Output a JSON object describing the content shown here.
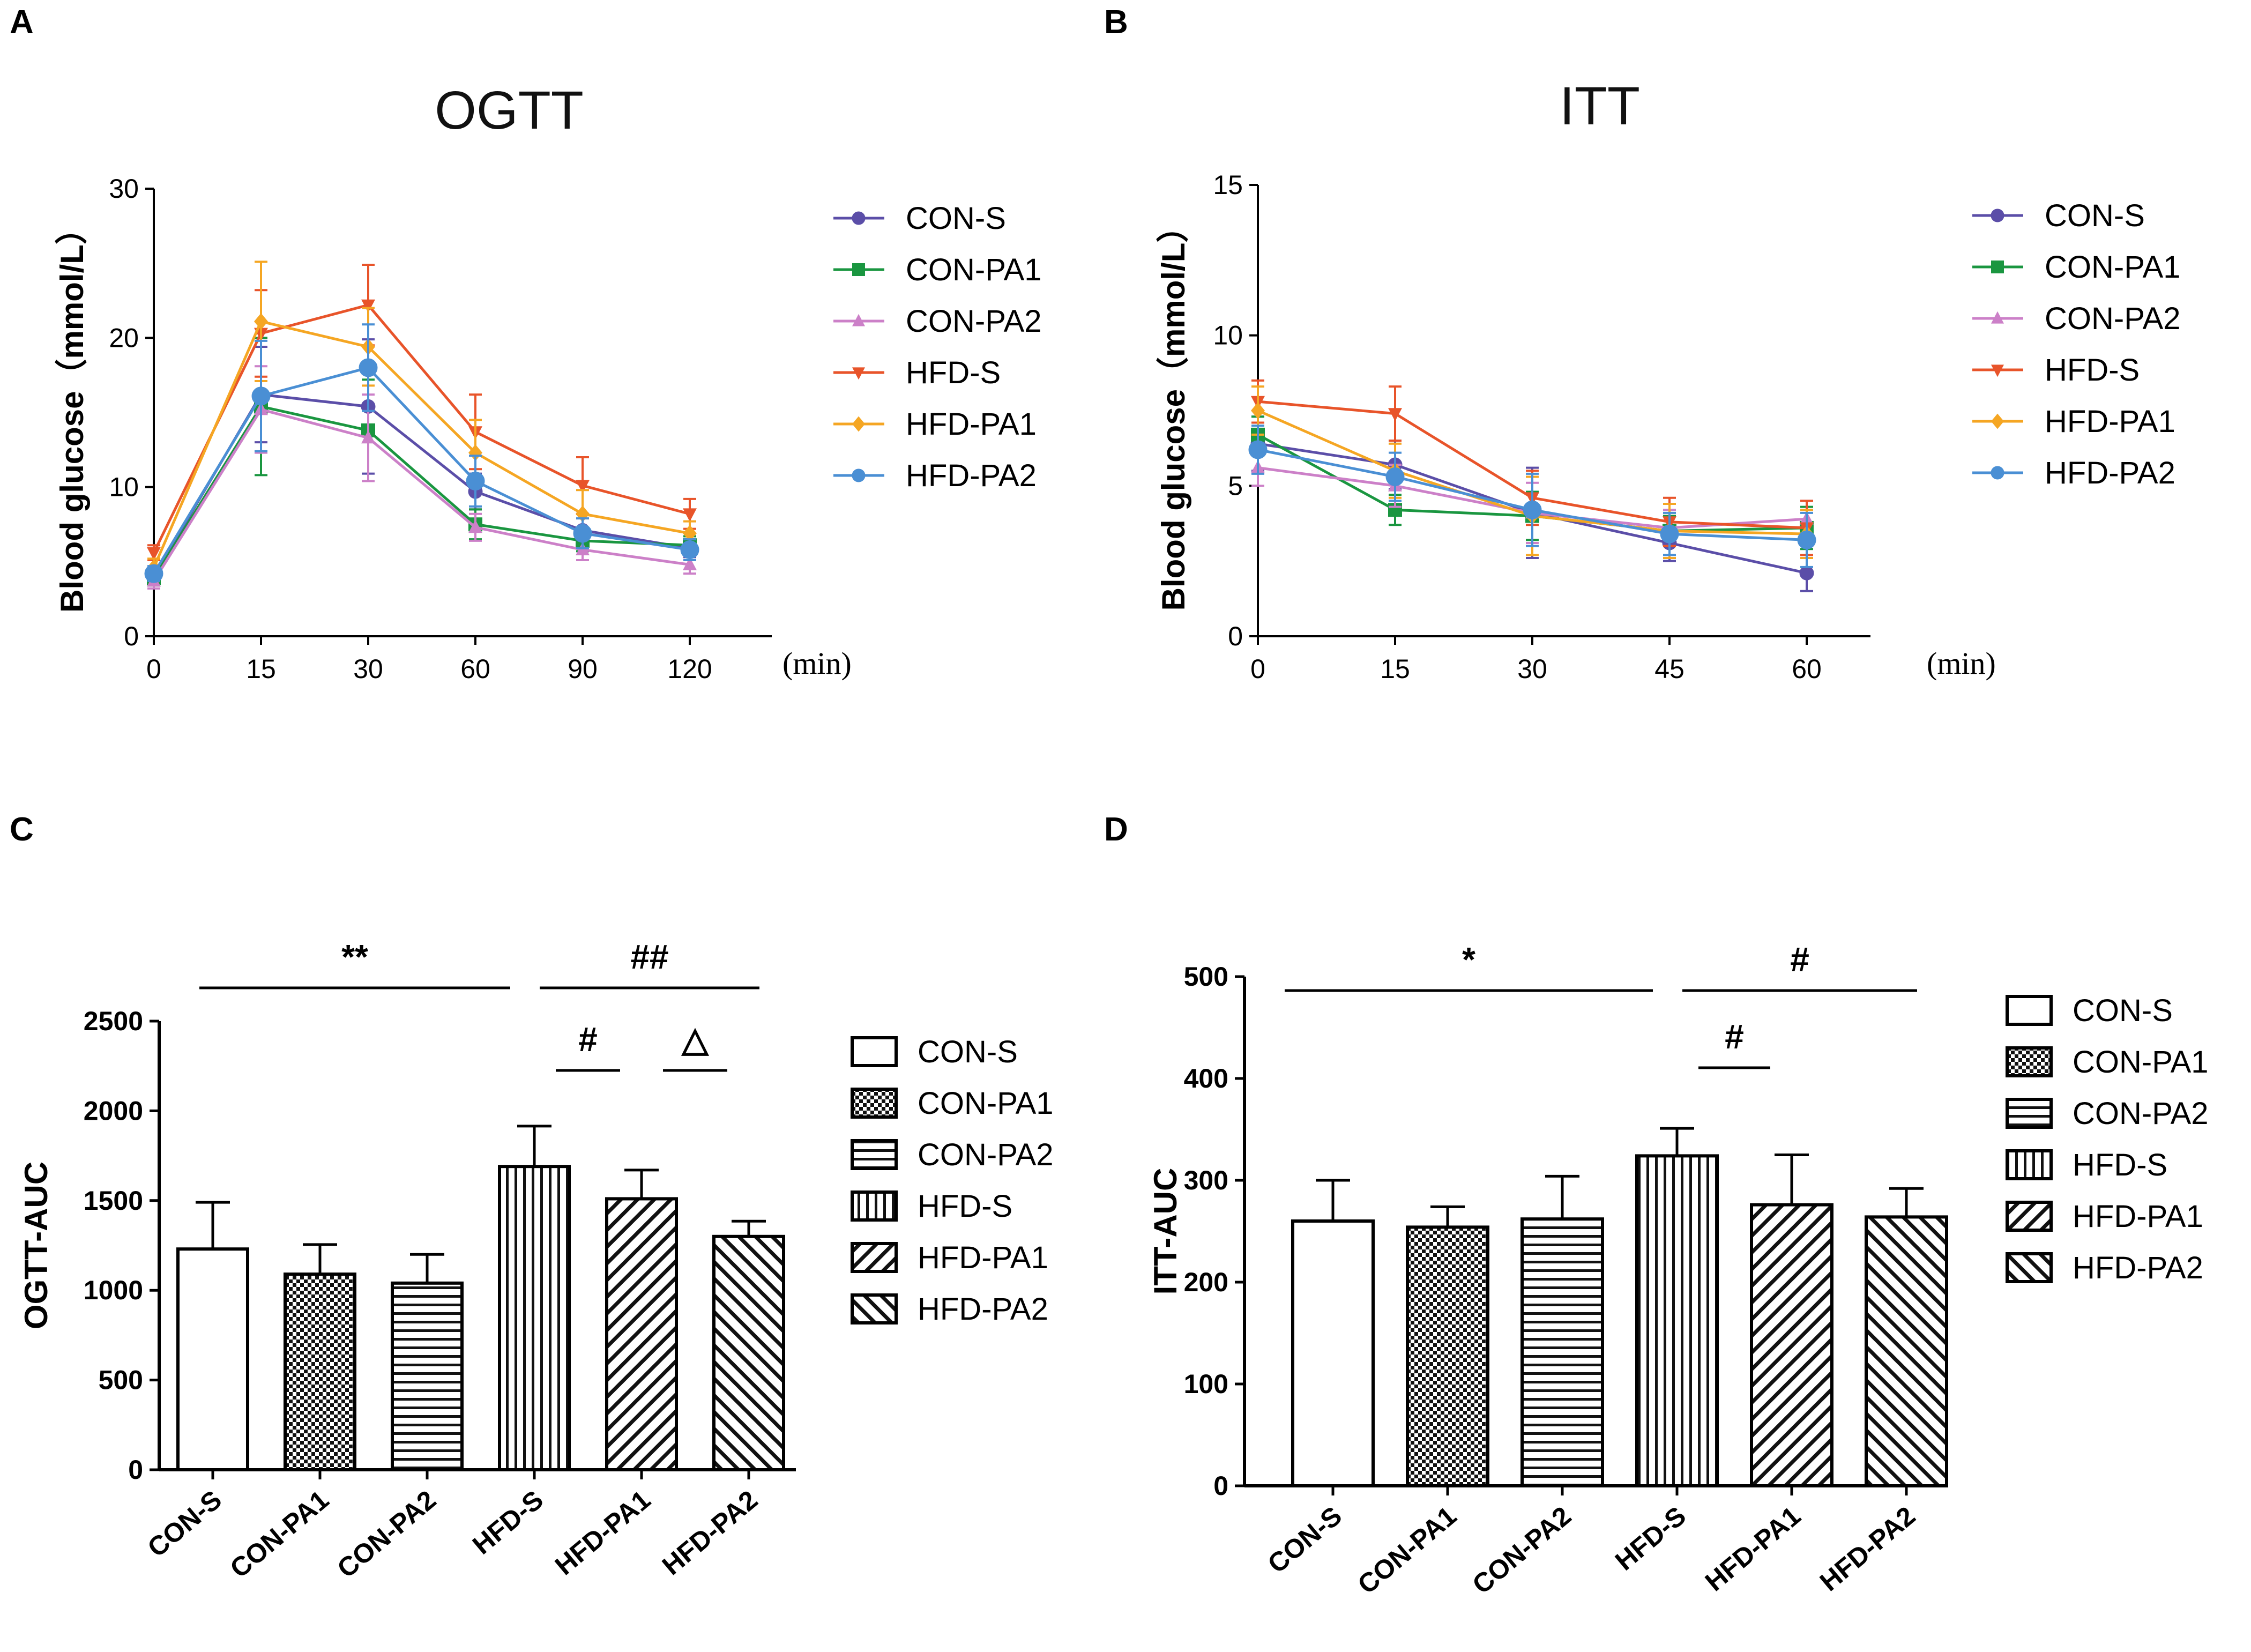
{
  "panel_labels": [
    "A",
    "B",
    "C",
    "D"
  ],
  "chart_data": [
    {
      "id": "A",
      "type": "line",
      "title": "OGTT",
      "xlabel": "(min)",
      "ylabel": "Blood glucose（mmol/L）",
      "x": [
        0,
        15,
        30,
        60,
        90,
        120
      ],
      "x_ticks": [
        "0",
        "15",
        "30",
        "60",
        "90",
        "120"
      ],
      "ylim": [
        0,
        30
      ],
      "y_ticks": [
        0,
        10,
        20,
        30
      ],
      "series": [
        {
          "name": "CON-S",
          "marker": "circle",
          "color": "#5b4ea8",
          "values": [
            4.0,
            16.2,
            15.4,
            9.7,
            7.1,
            5.9
          ],
          "err": [
            0.5,
            3.2,
            4.5,
            1.2,
            1.1,
            0.6
          ]
        },
        {
          "name": "CON-PA1",
          "marker": "square",
          "color": "#1a9640",
          "values": [
            3.9,
            15.4,
            13.8,
            7.5,
            6.4,
            6.1
          ],
          "err": [
            0.5,
            4.6,
            3.4,
            1.0,
            0.7,
            0.6
          ]
        },
        {
          "name": "CON-PA2",
          "marker": "triangle-up",
          "color": "#cc80c8",
          "values": [
            3.7,
            15.2,
            13.3,
            7.3,
            5.8,
            4.8
          ],
          "err": [
            0.5,
            2.9,
            2.9,
            0.9,
            0.7,
            0.6
          ]
        },
        {
          "name": "HFD-S",
          "marker": "triangle-down",
          "color": "#e8542a",
          "values": [
            5.6,
            20.3,
            22.2,
            13.7,
            10.1,
            8.2
          ],
          "err": [
            0.5,
            2.9,
            2.7,
            2.5,
            1.9,
            1.0
          ]
        },
        {
          "name": "HFD-PA1",
          "marker": "diamond",
          "color": "#f5a623",
          "values": [
            4.6,
            21.1,
            19.4,
            12.3,
            8.2,
            6.9
          ],
          "err": [
            0.6,
            4.0,
            2.6,
            2.2,
            1.6,
            0.8
          ]
        },
        {
          "name": "HFD-PA2",
          "marker": "circle",
          "color": "#4a8fd4",
          "values": [
            4.2,
            16.1,
            18.0,
            10.4,
            6.9,
            5.8
          ],
          "err": [
            0.5,
            3.7,
            2.9,
            1.7,
            1.0,
            0.7
          ]
        }
      ]
    },
    {
      "id": "B",
      "type": "line",
      "title": "ITT",
      "xlabel": "(min)",
      "ylabel": "Blood glucose（mmol/L）",
      "x": [
        0,
        15,
        30,
        45,
        60
      ],
      "x_ticks": [
        "0",
        "15",
        "30",
        "45",
        "60"
      ],
      "ylim": [
        0,
        15
      ],
      "y_ticks": [
        0,
        5,
        10,
        15
      ],
      "series": [
        {
          "name": "CON-S",
          "marker": "circle",
          "color": "#5b4ea8",
          "values": [
            6.4,
            5.7,
            4.1,
            3.1,
            2.1
          ],
          "err": [
            0.9,
            0.8,
            1.5,
            0.6,
            0.6
          ]
        },
        {
          "name": "CON-PA1",
          "marker": "square",
          "color": "#1a9640",
          "values": [
            6.7,
            4.2,
            4.0,
            3.5,
            3.6
          ],
          "err": [
            0.6,
            0.5,
            0.8,
            0.5,
            0.7
          ]
        },
        {
          "name": "CON-PA2",
          "marker": "triangle-up",
          "color": "#cc80c8",
          "values": [
            5.6,
            5.0,
            4.1,
            3.6,
            3.9
          ],
          "err": [
            0.6,
            0.7,
            1.0,
            0.6,
            0.6
          ]
        },
        {
          "name": "HFD-S",
          "marker": "triangle-down",
          "color": "#e8542a",
          "values": [
            7.8,
            7.4,
            4.6,
            3.8,
            3.6
          ],
          "err": [
            0.7,
            0.9,
            0.9,
            0.8,
            0.9
          ]
        },
        {
          "name": "HFD-PA1",
          "marker": "diamond",
          "color": "#f5a623",
          "values": [
            7.5,
            5.5,
            4.0,
            3.5,
            3.4
          ],
          "err": [
            0.8,
            0.9,
            1.3,
            0.9,
            0.8
          ]
        },
        {
          "name": "HFD-PA2",
          "marker": "circle",
          "color": "#4a8fd4",
          "values": [
            6.2,
            5.3,
            4.2,
            3.4,
            3.2
          ],
          "err": [
            0.8,
            0.8,
            1.2,
            0.7,
            0.9
          ]
        }
      ]
    },
    {
      "id": "C",
      "type": "bar",
      "ylabel": "OGTT-AUC",
      "categories": [
        "CON-S",
        "CON-PA1",
        "CON-PA2",
        "HFD-S",
        "HFD-PA1",
        "HFD-PA2"
      ],
      "patterns": [
        "blank",
        "checker",
        "horizontal",
        "vertical",
        "diag-up",
        "diag-down"
      ],
      "values": [
        1230,
        1090,
        1040,
        1690,
        1510,
        1300
      ],
      "err": [
        260,
        165,
        160,
        225,
        160,
        85
      ],
      "ylim": [
        0,
        2500
      ],
      "y_ticks": [
        0,
        500,
        1000,
        1500,
        2000,
        2500
      ],
      "annotations": [
        {
          "text": "**",
          "from": 0,
          "to": 3,
          "level": 2
        },
        {
          "text": "##",
          "from": 3,
          "to": 5,
          "level": 2
        },
        {
          "text": "#",
          "from": 3,
          "to": 4,
          "level": 1
        },
        {
          "text": "△",
          "from": 4,
          "to": 5,
          "level": 1
        }
      ]
    },
    {
      "id": "D",
      "type": "bar",
      "ylabel": "ITT-AUC",
      "categories": [
        "CON-S",
        "CON-PA1",
        "CON-PA2",
        "HFD-S",
        "HFD-PA1",
        "HFD-PA2"
      ],
      "patterns": [
        "blank",
        "checker",
        "horizontal",
        "vertical",
        "diag-up",
        "diag-down"
      ],
      "values": [
        260,
        254,
        262,
        324,
        276,
        264
      ],
      "err": [
        40,
        20,
        42,
        27,
        49,
        28
      ],
      "ylim": [
        0,
        500
      ],
      "y_ticks": [
        0,
        100,
        200,
        300,
        400,
        500
      ],
      "annotations": [
        {
          "text": "*",
          "from": 0,
          "to": 3,
          "level": 2
        },
        {
          "text": "#",
          "from": 3,
          "to": 5,
          "level": 2
        },
        {
          "text": "#",
          "from": 3,
          "to": 4,
          "level": 1
        }
      ]
    }
  ]
}
